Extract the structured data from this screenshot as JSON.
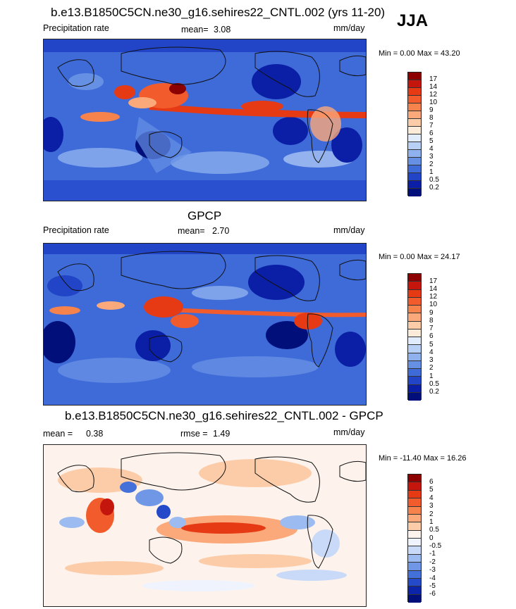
{
  "season": "JJA",
  "panels": [
    {
      "title": "b.e13.B1850C5CN.ne30_g16.sehires22_CNTL.002 (yrs 11-20)",
      "left_label": "Precipitation rate",
      "stat_label": "mean=",
      "stat_value": "3.08",
      "stat2_label": "",
      "stat2_value": "",
      "units": "mm/day",
      "minmax": "Min =   0.00 Max =  43.20",
      "colorbar": {
        "labels": [
          "17",
          "14",
          "12",
          "10",
          "9",
          "8",
          "7",
          "6",
          "5",
          "4",
          "3",
          "2",
          "1",
          "0.5",
          "0.2"
        ],
        "colors": [
          "#8c0000",
          "#c4160c",
          "#e63a14",
          "#f25c2c",
          "#f7834c",
          "#fba97a",
          "#fccca8",
          "#fdebd9",
          "#e0ebfc",
          "#b8d0f6",
          "#8fb2ef",
          "#6690e4",
          "#3f6bd9",
          "#2245c8",
          "#0a1fa6",
          "#000f7a"
        ]
      }
    },
    {
      "title": "GPCP",
      "left_label": "Precipitation rate",
      "stat_label": "mean=",
      "stat_value": "2.70",
      "stat2_label": "",
      "stat2_value": "",
      "units": "mm/day",
      "minmax": "Min =   0.00 Max =  24.17",
      "colorbar": {
        "labels": [
          "17",
          "14",
          "12",
          "10",
          "9",
          "8",
          "7",
          "6",
          "5",
          "4",
          "3",
          "2",
          "1",
          "0.5",
          "0.2"
        ],
        "colors": [
          "#8c0000",
          "#c4160c",
          "#e63a14",
          "#f25c2c",
          "#f7834c",
          "#fba97a",
          "#fccca8",
          "#fdebd9",
          "#e0ebfc",
          "#b8d0f6",
          "#8fb2ef",
          "#6690e4",
          "#3f6bd9",
          "#2245c8",
          "#0a1fa6",
          "#000f7a"
        ]
      }
    },
    {
      "title": "b.e13.B1850C5CN.ne30_g16.sehires22_CNTL.002 - GPCP",
      "left_label": "mean =",
      "stat_label": "",
      "stat_value": "0.38",
      "stat2_label": "rmse =",
      "stat2_value": "1.49",
      "units": "mm/day",
      "minmax": "Min = -11.40 Max =  16.26",
      "colorbar": {
        "labels": [
          "6",
          "5",
          "4",
          "3",
          "2",
          "1",
          "0.5",
          "0",
          "-0.5",
          "-1",
          "-2",
          "-3",
          "-4",
          "-5",
          "-6"
        ],
        "colors": [
          "#8c0000",
          "#c4160c",
          "#e63a14",
          "#f25c2c",
          "#f7834c",
          "#fba97a",
          "#fccca8",
          "#fdf3ec",
          "#eef3fd",
          "#c8daf8",
          "#9cbcf1",
          "#6f97e6",
          "#4470da",
          "#2449c9",
          "#0c24a8",
          "#000f7a"
        ]
      }
    }
  ]
}
